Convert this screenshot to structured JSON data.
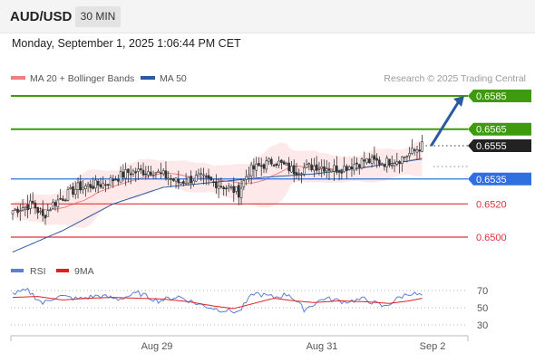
{
  "header": {
    "symbol": "AUD/USD",
    "timeframe": "30 MIN",
    "datetime": "Monday, September 1, 2025 1:06:44 PM CET"
  },
  "legend": {
    "items": [
      {
        "label": "MA 20 + Bollinger Bands",
        "color": "#f08080"
      },
      {
        "label": "MA 50",
        "color": "#2c5aa0"
      }
    ],
    "credit": "Research © 2025 Trading Central"
  },
  "chart_data": [
    {
      "type": "candlestick",
      "title": "AUD/USD",
      "ylim": [
        0.6488,
        0.6592
      ],
      "x_tick_labels": [
        "Aug 29",
        "Aug 31",
        "Sep 2"
      ],
      "last_price": {
        "value": 0.6555,
        "label": "0.6555",
        "color": "#222222"
      },
      "levels": [
        {
          "value": 0.6585,
          "label": "0.6585",
          "kind": "resistance",
          "color": "#3e9a0e"
        },
        {
          "value": 0.6565,
          "label": "0.6565",
          "kind": "resistance",
          "color": "#3e9a0e"
        },
        {
          "value": 0.6535,
          "label": "0.6535",
          "kind": "pivot",
          "color": "#2f6fe0"
        },
        {
          "value": 0.652,
          "label": "0.6520",
          "kind": "support",
          "color": "#e0303a"
        },
        {
          "value": 0.65,
          "label": "0.6500",
          "kind": "support",
          "color": "#e0303a"
        }
      ],
      "target_arrow": {
        "from": 0.6555,
        "to": 0.6585,
        "color": "#2c5aa0"
      },
      "ohlc_anchors": [
        {
          "i": 0,
          "close": 0.6516
        },
        {
          "i": 8,
          "close": 0.652
        },
        {
          "i": 12,
          "close": 0.6512
        },
        {
          "i": 16,
          "close": 0.652
        },
        {
          "i": 26,
          "close": 0.653
        },
        {
          "i": 36,
          "close": 0.6532
        },
        {
          "i": 46,
          "close": 0.6539
        },
        {
          "i": 56,
          "close": 0.654
        },
        {
          "i": 66,
          "close": 0.6533
        },
        {
          "i": 74,
          "close": 0.6536
        },
        {
          "i": 82,
          "close": 0.6532
        },
        {
          "i": 90,
          "close": 0.6527
        },
        {
          "i": 94,
          "close": 0.654
        },
        {
          "i": 104,
          "close": 0.6546
        },
        {
          "i": 112,
          "close": 0.654
        },
        {
          "i": 120,
          "close": 0.6543
        },
        {
          "i": 130,
          "close": 0.6541
        },
        {
          "i": 140,
          "close": 0.6546
        },
        {
          "i": 148,
          "close": 0.6545
        },
        {
          "i": 154,
          "close": 0.6547
        },
        {
          "i": 159,
          "close": 0.6551
        },
        {
          "i": 163,
          "close": 0.6555
        }
      ],
      "ma50": [
        {
          "i": 0,
          "v": 0.6491
        },
        {
          "i": 20,
          "v": 0.6504
        },
        {
          "i": 40,
          "v": 0.652
        },
        {
          "i": 60,
          "v": 0.653
        },
        {
          "i": 80,
          "v": 0.6533
        },
        {
          "i": 100,
          "v": 0.6536
        },
        {
          "i": 120,
          "v": 0.6538
        },
        {
          "i": 140,
          "v": 0.6542
        },
        {
          "i": 163,
          "v": 0.6547
        }
      ]
    },
    {
      "type": "line",
      "title": "RSI",
      "series": [
        {
          "name": "RSI",
          "color": "#5b7fd8"
        },
        {
          "name": "9MA",
          "color": "#e02020"
        }
      ],
      "ylim": [
        20,
        80
      ],
      "y_ticks": [
        "70",
        "50",
        "30"
      ],
      "rsi_anchors": [
        {
          "i": 0,
          "v": 66
        },
        {
          "i": 6,
          "v": 70
        },
        {
          "i": 12,
          "v": 55
        },
        {
          "i": 18,
          "v": 64
        },
        {
          "i": 26,
          "v": 60
        },
        {
          "i": 34,
          "v": 64
        },
        {
          "i": 42,
          "v": 60
        },
        {
          "i": 50,
          "v": 67
        },
        {
          "i": 58,
          "v": 58
        },
        {
          "i": 66,
          "v": 63
        },
        {
          "i": 74,
          "v": 54
        },
        {
          "i": 82,
          "v": 48
        },
        {
          "i": 90,
          "v": 45
        },
        {
          "i": 96,
          "v": 67
        },
        {
          "i": 104,
          "v": 62
        },
        {
          "i": 110,
          "v": 66
        },
        {
          "i": 116,
          "v": 48
        },
        {
          "i": 124,
          "v": 61
        },
        {
          "i": 132,
          "v": 57
        },
        {
          "i": 140,
          "v": 60
        },
        {
          "i": 148,
          "v": 51
        },
        {
          "i": 154,
          "v": 62
        },
        {
          "i": 158,
          "v": 67
        },
        {
          "i": 163,
          "v": 64
        }
      ],
      "ma9_anchors": [
        {
          "i": 0,
          "v": 62
        },
        {
          "i": 10,
          "v": 63
        },
        {
          "i": 20,
          "v": 59
        },
        {
          "i": 30,
          "v": 61
        },
        {
          "i": 40,
          "v": 62
        },
        {
          "i": 50,
          "v": 61
        },
        {
          "i": 60,
          "v": 60
        },
        {
          "i": 70,
          "v": 57
        },
        {
          "i": 80,
          "v": 52
        },
        {
          "i": 88,
          "v": 49
        },
        {
          "i": 96,
          "v": 55
        },
        {
          "i": 104,
          "v": 61
        },
        {
          "i": 112,
          "v": 58
        },
        {
          "i": 120,
          "v": 56
        },
        {
          "i": 130,
          "v": 58
        },
        {
          "i": 140,
          "v": 57
        },
        {
          "i": 150,
          "v": 55
        },
        {
          "i": 158,
          "v": 58
        },
        {
          "i": 163,
          "v": 61
        }
      ]
    }
  ]
}
